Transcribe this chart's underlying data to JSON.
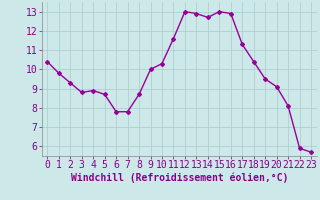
{
  "x": [
    0,
    1,
    2,
    3,
    4,
    5,
    6,
    7,
    8,
    9,
    10,
    11,
    12,
    13,
    14,
    15,
    16,
    17,
    18,
    19,
    20,
    21,
    22,
    23
  ],
  "y": [
    10.4,
    9.8,
    9.3,
    8.8,
    8.9,
    8.7,
    7.8,
    7.8,
    8.7,
    10.0,
    10.3,
    11.6,
    13.0,
    12.9,
    12.7,
    13.0,
    12.9,
    11.3,
    10.4,
    9.5,
    9.1,
    8.1,
    5.9,
    5.7
  ],
  "line_color": "#990099",
  "marker": "D",
  "marker_size": 2.0,
  "bg_color": "#cce8e8",
  "grid_color": "#aacccc",
  "xlabel": "Windchill (Refroidissement éolien,°C)",
  "xlabel_color": "#880088",
  "tick_color": "#880088",
  "xlim": [
    -0.5,
    23.5
  ],
  "ylim": [
    5.5,
    13.5
  ],
  "yticks": [
    6,
    7,
    8,
    9,
    10,
    11,
    12,
    13
  ],
  "xticks": [
    0,
    1,
    2,
    3,
    4,
    5,
    6,
    7,
    8,
    9,
    10,
    11,
    12,
    13,
    14,
    15,
    16,
    17,
    18,
    19,
    20,
    21,
    22,
    23
  ],
  "line_width": 1.0,
  "tick_fontsize": 7.0,
  "xlabel_fontsize": 7.0
}
